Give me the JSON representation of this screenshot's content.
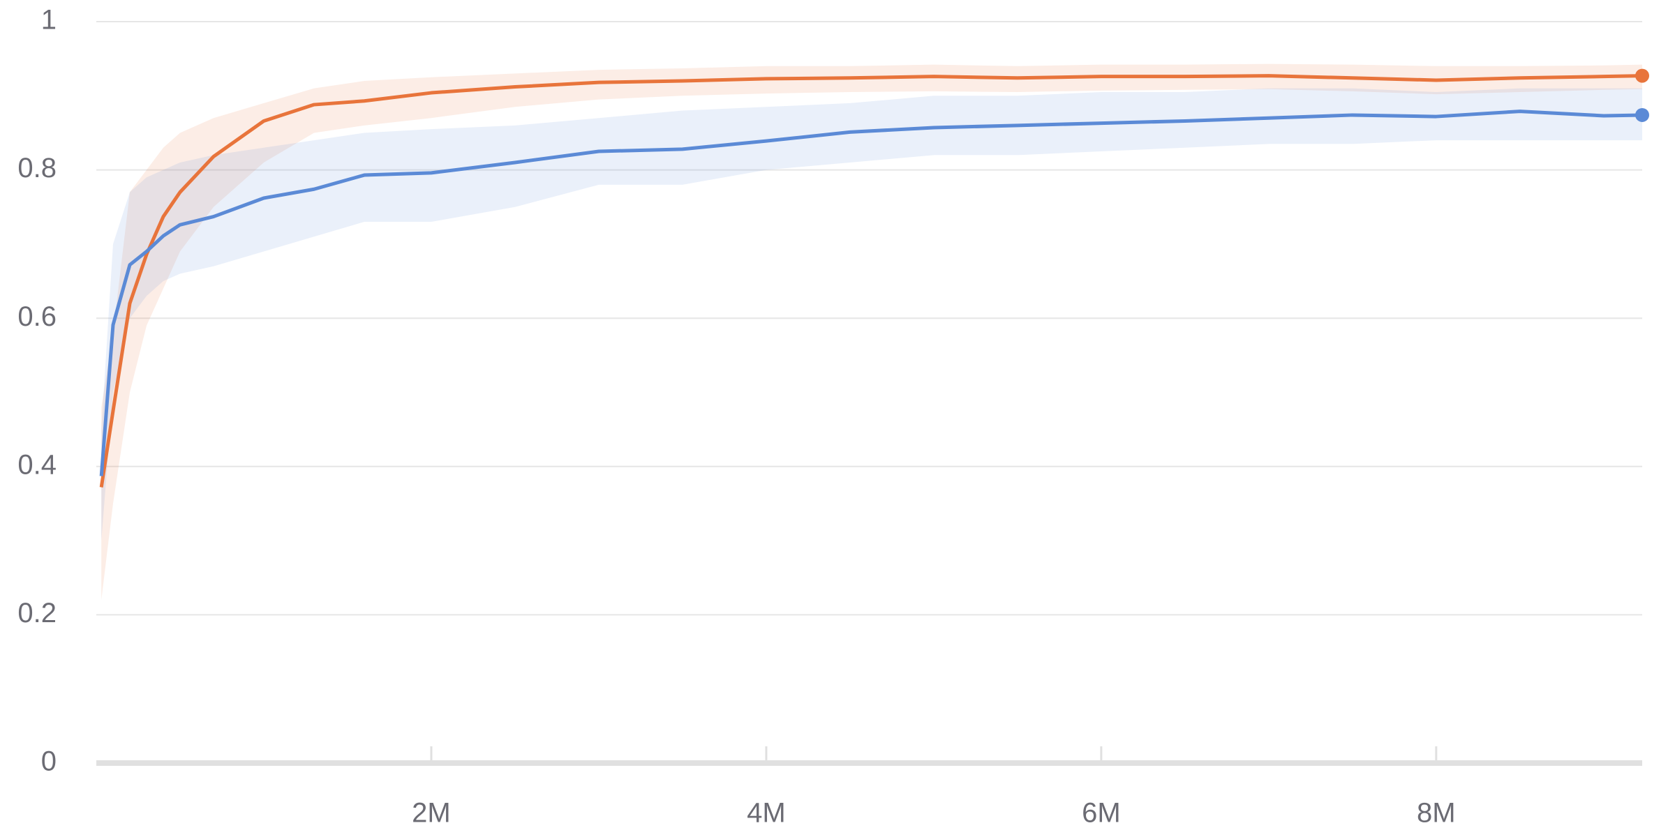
{
  "chart_data": {
    "type": "line",
    "x": [
      30000,
      100000,
      200000,
      300000,
      400000,
      500000,
      700000,
      1000000,
      1300000,
      1600000,
      2000000,
      2500000,
      3000000,
      3500000,
      4000000,
      4500000,
      5000000,
      5500000,
      6000000,
      6500000,
      7000000,
      7500000,
      8000000,
      8500000,
      9000000,
      9230000
    ],
    "series": [
      {
        "color": "#e8743b",
        "values": [
          0.372,
          0.475,
          0.62,
          0.686,
          0.737,
          0.77,
          0.818,
          0.866,
          0.888,
          0.893,
          0.904,
          0.912,
          0.918,
          0.92,
          0.923,
          0.924,
          0.926,
          0.924,
          0.926,
          0.926,
          0.927,
          0.924,
          0.921,
          0.924,
          0.926,
          0.927
        ],
        "upper": [
          0.48,
          0.58,
          0.77,
          0.8,
          0.83,
          0.85,
          0.87,
          0.89,
          0.91,
          0.92,
          0.925,
          0.93,
          0.935,
          0.937,
          0.94,
          0.94,
          0.942,
          0.94,
          0.942,
          0.942,
          0.943,
          0.942,
          0.94,
          0.94,
          0.941,
          0.942
        ],
        "lower": [
          0.22,
          0.35,
          0.5,
          0.59,
          0.64,
          0.69,
          0.75,
          0.81,
          0.85,
          0.86,
          0.87,
          0.885,
          0.895,
          0.9,
          0.903,
          0.905,
          0.906,
          0.905,
          0.907,
          0.908,
          0.909,
          0.906,
          0.902,
          0.905,
          0.908,
          0.909
        ]
      },
      {
        "color": "#5b8ad6",
        "values": [
          0.387,
          0.591,
          0.672,
          0.69,
          0.711,
          0.726,
          0.737,
          0.762,
          0.774,
          0.793,
          0.796,
          0.81,
          0.825,
          0.828,
          0.839,
          0.851,
          0.857,
          0.86,
          0.863,
          0.866,
          0.87,
          0.874,
          0.872,
          0.879,
          0.873,
          0.874
        ],
        "upper": [
          0.45,
          0.7,
          0.77,
          0.79,
          0.8,
          0.81,
          0.82,
          0.83,
          0.84,
          0.85,
          0.855,
          0.86,
          0.87,
          0.88,
          0.885,
          0.89,
          0.9,
          0.9,
          0.905,
          0.905,
          0.91,
          0.91,
          0.905,
          0.91,
          0.91,
          0.91
        ],
        "lower": [
          0.3,
          0.5,
          0.6,
          0.63,
          0.65,
          0.66,
          0.67,
          0.69,
          0.71,
          0.73,
          0.73,
          0.75,
          0.78,
          0.78,
          0.8,
          0.81,
          0.82,
          0.82,
          0.825,
          0.83,
          0.835,
          0.835,
          0.84,
          0.84,
          0.84,
          0.84
        ]
      }
    ],
    "xlim": [
      0,
      9230000
    ],
    "xticks": [
      {
        "value": 2000000,
        "label": "2M"
      },
      {
        "value": 4000000,
        "label": "4M"
      },
      {
        "value": 6000000,
        "label": "6M"
      },
      {
        "value": 8000000,
        "label": "8M"
      }
    ],
    "ylim": [
      0,
      1
    ],
    "yticks": [
      0,
      0.2,
      0.4,
      0.6,
      0.8,
      1
    ],
    "grid": true
  }
}
